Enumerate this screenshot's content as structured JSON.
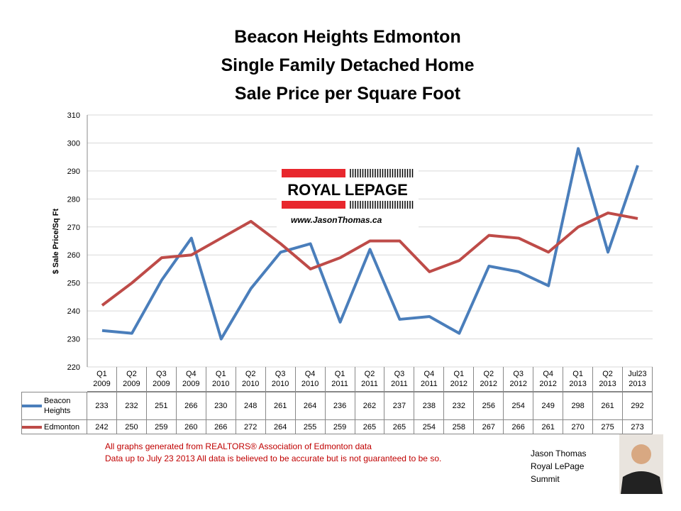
{
  "chart_data": {
    "type": "line",
    "title": [
      "Beacon Heights Edmonton",
      "Single Family Detached Home",
      "Sale Price per Square Foot"
    ],
    "y_label": "$ Sale Price/Sq Ft",
    "categories": [
      "Q1 2009",
      "Q2 2009",
      "Q3 2009",
      "Q4 2009",
      "Q1 2010",
      "Q2 2010",
      "Q3 2010",
      "Q4 2010",
      "Q1 2011",
      "Q2 2011",
      "Q3 2011",
      "Q4 2011",
      "Q1 2012",
      "Q2 2012",
      "Q3 2012",
      "Q4 2012",
      "Q1 2013",
      "Q2 2013",
      "Jul23 2013"
    ],
    "series": [
      {
        "name": "Beacon Heights",
        "color": "#4a7ebb",
        "values": [
          233,
          232,
          251,
          266,
          230,
          248,
          261,
          264,
          236,
          262,
          237,
          238,
          232,
          256,
          254,
          249,
          298,
          261,
          292
        ]
      },
      {
        "name": "Edmonton",
        "color": "#be4b48",
        "values": [
          242,
          250,
          259,
          260,
          266,
          272,
          264,
          255,
          259,
          265,
          265,
          254,
          258,
          267,
          266,
          261,
          270,
          275,
          273
        ]
      }
    ],
    "ylim": [
      220,
      310
    ],
    "yticks": [
      220,
      230,
      240,
      250,
      260,
      270,
      280,
      290,
      300,
      310
    ],
    "grid": true,
    "logo": {
      "brand": "ROYAL LEPAGE",
      "url": "www.JasonThomas.ca"
    },
    "notes": [
      "All graphs generated from REALTORS® Association of Edmonton data",
      "Data up to  July 23 2013  All data is believed to be accurate but is not guaranteed to be so."
    ],
    "signature": [
      "Jason Thomas",
      "Royal LePage",
      "Summit"
    ]
  }
}
